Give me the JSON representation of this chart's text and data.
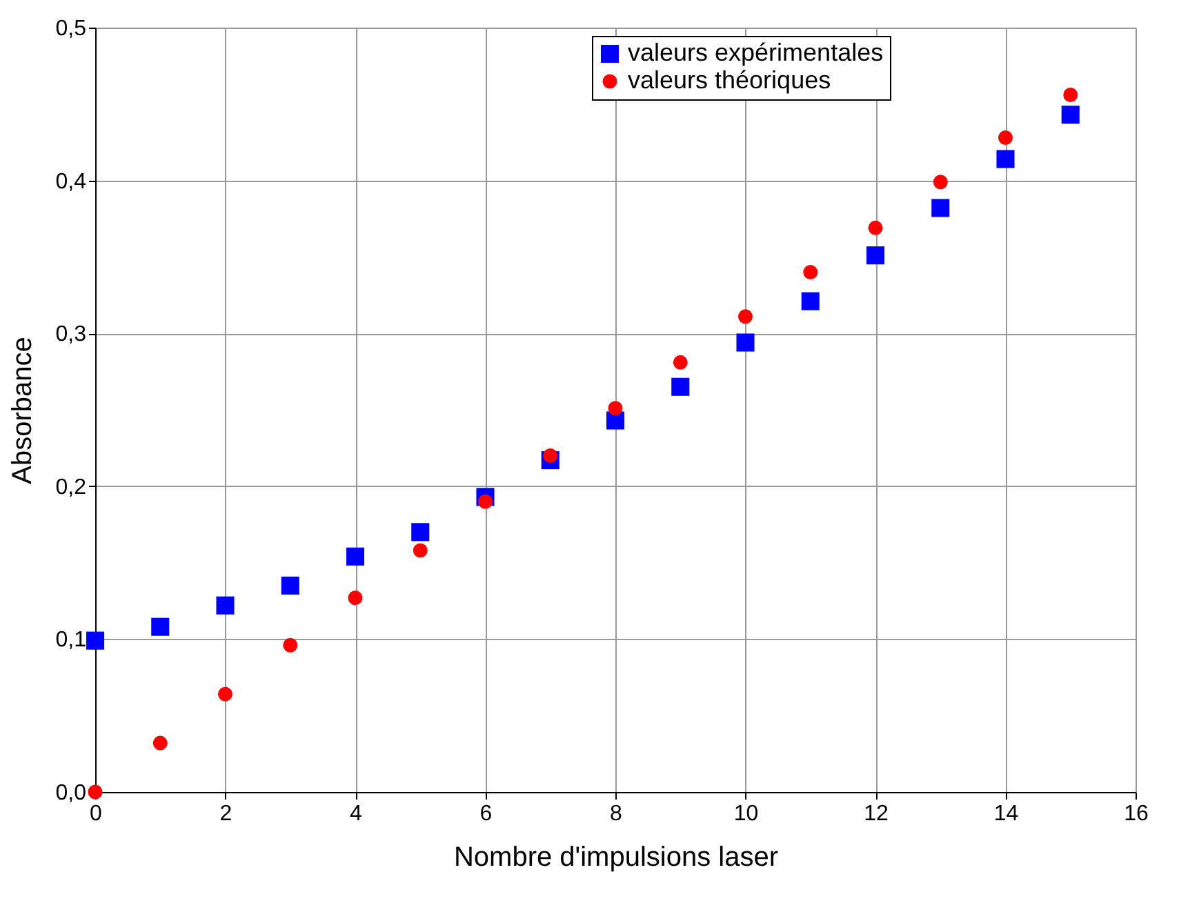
{
  "chart_data": {
    "type": "scatter",
    "xlabel": "Nombre d'impulsions laser",
    "ylabel": "Absorbance",
    "x": [
      0,
      1,
      2,
      3,
      4,
      5,
      6,
      7,
      8,
      9,
      10,
      11,
      12,
      13,
      14,
      15
    ],
    "series": [
      {
        "name": "valeurs expérimentales",
        "color": "#0000ff",
        "marker": "square",
        "values": [
          0.099,
          0.108,
          0.122,
          0.135,
          0.154,
          0.17,
          0.193,
          0.217,
          0.243,
          0.265,
          0.294,
          0.321,
          0.351,
          0.382,
          0.414,
          0.443
        ]
      },
      {
        "name": "valeurs théoriques",
        "color": "#ff0000",
        "marker": "circle",
        "values": [
          0.0,
          0.032,
          0.064,
          0.096,
          0.127,
          0.158,
          0.19,
          0.22,
          0.251,
          0.281,
          0.311,
          0.34,
          0.369,
          0.399,
          0.428,
          0.456
        ]
      }
    ],
    "xlim": [
      0,
      16
    ],
    "xticks": [
      0,
      2,
      4,
      6,
      8,
      10,
      12,
      14,
      16
    ],
    "ylim": [
      0,
      0.5
    ],
    "yticks": [
      {
        "value": 0,
        "label": "0,0"
      },
      {
        "value": 0.1,
        "label": "0,1"
      },
      {
        "value": 0.2,
        "label": "0,2"
      },
      {
        "value": 0.3,
        "label": "0,3"
      },
      {
        "value": 0.4,
        "label": "0,4"
      },
      {
        "value": 0.5,
        "label": "0,5"
      }
    ],
    "grid": true,
    "legend": "top right"
  }
}
